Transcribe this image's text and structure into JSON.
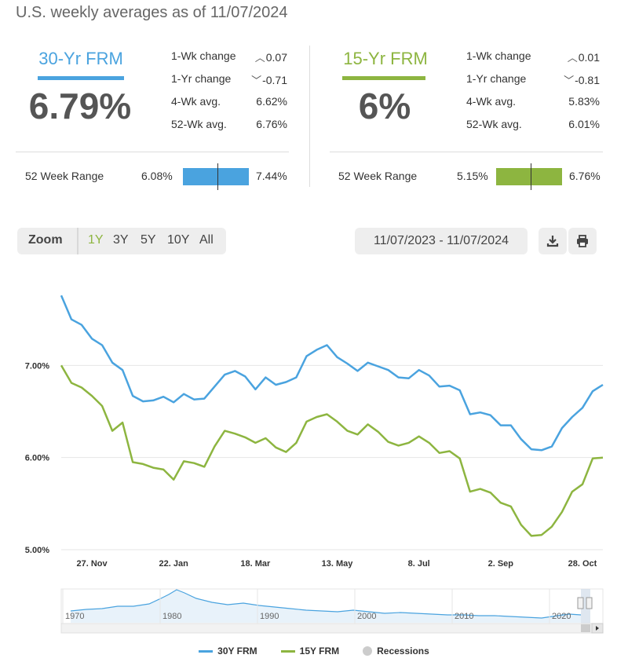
{
  "title": "U.S. weekly averages as of 11/07/2024",
  "colors": {
    "rate30": "#4aa3df",
    "rate15": "#8db540",
    "recession": "#cccccc"
  },
  "cards": [
    {
      "name": "30-Yr FRM",
      "rate": "6.79%",
      "stats": [
        {
          "label": "1-Wk change",
          "direction": "up",
          "value": "0.07"
        },
        {
          "label": "1-Yr change",
          "direction": "down",
          "value": "-0.71"
        },
        {
          "label": "4-Wk avg.",
          "direction": "",
          "value": "6.62%"
        },
        {
          "label": "52-Wk avg.",
          "direction": "",
          "value": "6.76%"
        }
      ],
      "range": {
        "label": "52 Week Range",
        "low": "6.08%",
        "high": "7.44%",
        "current_fraction": 0.52
      }
    },
    {
      "name": "15-Yr FRM",
      "rate": "6%",
      "stats": [
        {
          "label": "1-Wk change",
          "direction": "up",
          "value": "0.01"
        },
        {
          "label": "1-Yr change",
          "direction": "down",
          "value": "-0.81"
        },
        {
          "label": "4-Wk avg.",
          "direction": "",
          "value": "5.83%"
        },
        {
          "label": "52-Wk avg.",
          "direction": "",
          "value": "6.01%"
        }
      ],
      "range": {
        "label": "52 Week Range",
        "low": "5.15%",
        "high": "6.76%",
        "current_fraction": 0.52
      }
    }
  ],
  "zoom": {
    "label": "Zoom",
    "options": [
      "1Y",
      "3Y",
      "5Y",
      "10Y",
      "All"
    ],
    "active": "1Y"
  },
  "date_range": "11/07/2023 - 11/07/2024",
  "icons": {
    "download": "download-icon",
    "print": "print-icon"
  },
  "chart_data": {
    "type": "line",
    "ylim": [
      5.0,
      8.0
    ],
    "yticks": [
      {
        "value": 5.0,
        "label": "5.00%"
      },
      {
        "value": 6.0,
        "label": "6.00%"
      },
      {
        "value": 7.0,
        "label": "7.00%"
      }
    ],
    "xlim": [
      0,
      52
    ],
    "xticks": [
      {
        "week": 3,
        "label": "27. Nov"
      },
      {
        "week": 11,
        "label": "22. Jan"
      },
      {
        "week": 19,
        "label": "18. Mar"
      },
      {
        "week": 27,
        "label": "13. May"
      },
      {
        "week": 35,
        "label": "8. Jul"
      },
      {
        "week": 43,
        "label": "2. Sep"
      },
      {
        "week": 51,
        "label": "28. Oct"
      }
    ],
    "x_unit": "weekly observations starting 11/07/2023",
    "series": [
      {
        "name": "30Y FRM",
        "values": [
          7.76,
          7.5,
          7.44,
          7.29,
          7.22,
          7.03,
          6.95,
          6.67,
          6.61,
          6.62,
          6.66,
          6.6,
          6.69,
          6.63,
          6.64,
          6.77,
          6.9,
          6.94,
          6.88,
          6.74,
          6.87,
          6.79,
          6.82,
          6.87,
          7.1,
          7.17,
          7.22,
          7.09,
          7.02,
          6.94,
          7.03,
          6.99,
          6.95,
          6.87,
          6.86,
          6.95,
          6.89,
          6.77,
          6.78,
          6.73,
          6.47,
          6.49,
          6.46,
          6.35,
          6.35,
          6.2,
          6.09,
          6.08,
          6.12,
          6.32,
          6.44,
          6.54,
          6.72,
          6.79
        ]
      },
      {
        "name": "15Y FRM",
        "values": [
          7.0,
          6.81,
          6.76,
          6.67,
          6.56,
          6.29,
          6.38,
          5.95,
          5.93,
          5.89,
          5.87,
          5.76,
          5.96,
          5.94,
          5.9,
          6.12,
          6.29,
          6.26,
          6.22,
          6.16,
          6.21,
          6.11,
          6.06,
          6.16,
          6.39,
          6.44,
          6.47,
          6.39,
          6.29,
          6.25,
          6.36,
          6.28,
          6.17,
          6.13,
          6.16,
          6.23,
          6.16,
          6.05,
          6.07,
          5.99,
          5.63,
          5.66,
          5.62,
          5.51,
          5.47,
          5.27,
          5.15,
          5.16,
          5.25,
          5.41,
          5.63,
          5.71,
          5.99,
          6.0
        ]
      }
    ],
    "navigator": {
      "labels": [
        "1970",
        "1980",
        "1990",
        "2000",
        "2010",
        "2020"
      ]
    },
    "legend": [
      {
        "name": "30Y FRM",
        "kind": "line"
      },
      {
        "name": "15Y FRM",
        "kind": "line"
      },
      {
        "name": "Recessions",
        "kind": "dot"
      }
    ]
  }
}
